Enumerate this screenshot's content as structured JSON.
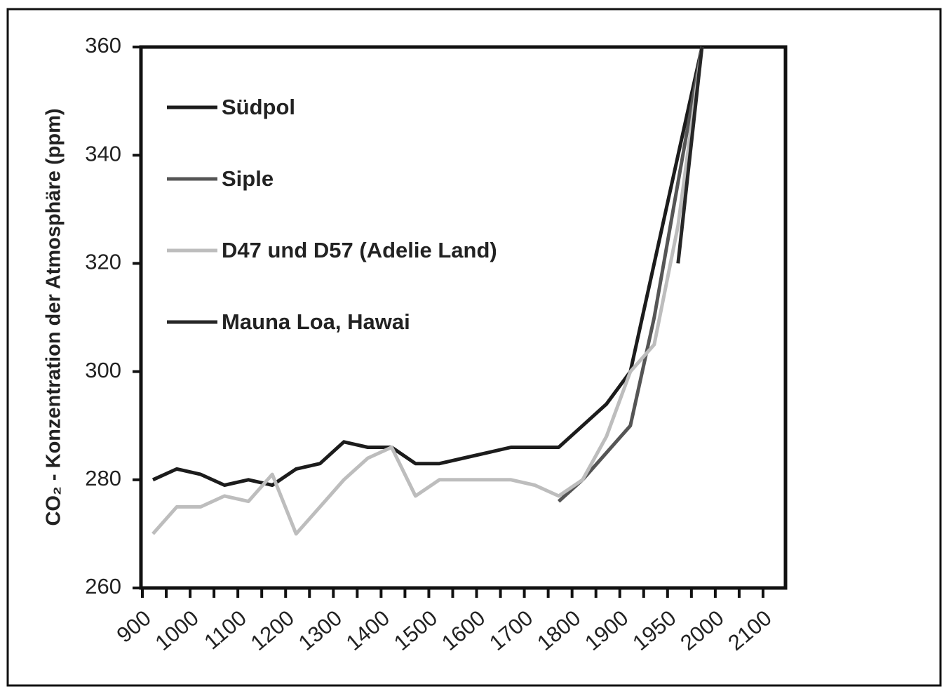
{
  "chart_data": {
    "type": "line",
    "ylabel": "CO₂ - Konzentration der Atmosphäre (ppm)",
    "categories": [
      "900",
      null,
      "1000",
      null,
      "1100",
      null,
      "1200",
      null,
      "1300",
      null,
      "1400",
      null,
      "1500",
      null,
      "1600",
      null,
      "1700",
      null,
      "1800",
      null,
      "1900",
      null,
      "1950",
      null,
      "2000",
      null,
      "2100"
    ],
    "series": [
      {
        "name": "Südpol",
        "color": "#1c1c1c",
        "values": [
          280,
          282,
          281,
          279,
          280,
          279,
          282,
          283,
          287,
          286,
          286,
          283,
          283,
          284,
          285,
          286,
          286,
          286,
          290,
          294,
          300,
          320,
          340,
          360,
          null,
          null,
          null
        ]
      },
      {
        "name": "Siple",
        "color": "#555555",
        "values": [
          null,
          null,
          null,
          null,
          null,
          null,
          null,
          null,
          null,
          null,
          null,
          null,
          null,
          null,
          null,
          null,
          null,
          276,
          280,
          285,
          290,
          310,
          335,
          360,
          null,
          null,
          null
        ]
      },
      {
        "name": "D47 und D57 (Adelie Land)",
        "color": "#bdbdbd",
        "values": [
          270,
          275,
          275,
          277,
          276,
          281,
          270,
          275,
          280,
          284,
          286,
          277,
          280,
          280,
          280,
          280,
          279,
          277,
          280,
          288,
          300,
          305,
          327,
          360,
          null,
          null,
          null
        ]
      },
      {
        "name": "Mauna Loa, Hawai",
        "color": "#262626",
        "values": [
          null,
          null,
          null,
          null,
          null,
          null,
          null,
          null,
          null,
          null,
          null,
          null,
          null,
          null,
          null,
          null,
          null,
          null,
          null,
          null,
          null,
          null,
          320,
          360,
          null,
          null,
          null
        ]
      }
    ],
    "ylim": [
      260,
      360
    ],
    "yticks": [
      260,
      280,
      300,
      320,
      340,
      360
    ],
    "grid": false,
    "legend": "upper left"
  }
}
